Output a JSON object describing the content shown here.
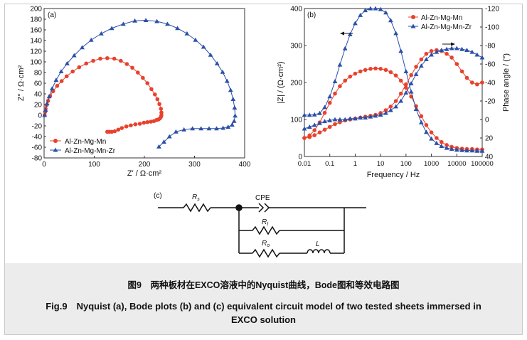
{
  "chart_data": [
    {
      "type": "scatter",
      "panel_label": "(a)",
      "xlabel": "Z' / Ω·cm²",
      "ylabel": "Z'' / Ω·cm²",
      "xlim": [
        0,
        400
      ],
      "ylim": [
        -80,
        200
      ],
      "xticks": [
        0,
        100,
        200,
        300,
        400
      ],
      "yticks": [
        -80,
        -60,
        -40,
        -20,
        0,
        20,
        40,
        60,
        80,
        100,
        120,
        140,
        160,
        180,
        200
      ],
      "legend_position": "bottom-left",
      "series": [
        {
          "name": "Al-Zn-Mg-Mn",
          "color": "#e8412c",
          "marker": "circle",
          "x": [
            1,
            2,
            3,
            5,
            8,
            12,
            18,
            26,
            35,
            45,
            57,
            70,
            84,
            98,
            112,
            126,
            140,
            153,
            165,
            176,
            187,
            197,
            206,
            214,
            221,
            226,
            230,
            233,
            234,
            234,
            233,
            231,
            228,
            224,
            219,
            213,
            206,
            199,
            191,
            182,
            173,
            164,
            155,
            148,
            141,
            135,
            130,
            126
          ],
          "y": [
            0,
            6,
            12,
            19,
            27,
            36,
            45,
            55,
            64,
            73,
            82,
            90,
            97,
            102,
            106,
            107,
            106,
            102,
            96,
            89,
            80,
            70,
            60,
            49,
            39,
            30,
            21,
            12,
            5,
            0,
            -3,
            -6,
            -8,
            -9,
            -11,
            -12,
            -13,
            -14,
            -16,
            -17,
            -19,
            -21,
            -24,
            -27,
            -30,
            -31,
            -31,
            -31
          ]
        },
        {
          "name": "Al-Zn-Mg-Mn-Zr",
          "color": "#2b50a8",
          "marker": "triangle",
          "x": [
            1,
            3,
            6,
            10,
            16,
            24,
            34,
            46,
            60,
            76,
            94,
            114,
            135,
            158,
            181,
            203,
            225,
            246,
            266,
            285,
            302,
            318,
            332,
            345,
            356,
            365,
            372,
            377,
            380,
            381,
            379,
            375,
            367,
            357,
            344,
            329,
            313,
            296,
            279,
            263,
            250,
            239,
            229
          ],
          "y": [
            0,
            10,
            22,
            35,
            50,
            66,
            82,
            97,
            112,
            127,
            141,
            153,
            163,
            171,
            177,
            178,
            176,
            171,
            163,
            153,
            141,
            128,
            113,
            97,
            81,
            64,
            47,
            30,
            14,
            -1,
            -11,
            -18,
            -22,
            -24,
            -25,
            -25,
            -25,
            -25,
            -27,
            -31,
            -40,
            -50,
            -59
          ]
        }
      ]
    },
    {
      "type": "line",
      "panel_label": "(b)",
      "xlabel": "Frequency / Hz",
      "ylabel_left": "|Z| / (Ω·cm²)",
      "ylabel_right": "Phase angle / (°)",
      "x_scale": "log",
      "xlim": [
        0.01,
        100000
      ],
      "xtick_labels": [
        "0.01",
        "0.1",
        "1",
        "10",
        "100",
        "1000",
        "10000",
        "100000"
      ],
      "ylim_left": [
        0,
        400
      ],
      "yticks_left": [
        0,
        100,
        200,
        300,
        400
      ],
      "ylim_right": [
        40,
        -120
      ],
      "yticks_right": [
        40,
        20,
        0,
        -20,
        -40,
        -60,
        -80,
        -100,
        -120
      ],
      "legend_position": "top-right",
      "series": [
        {
          "name": "Al-Zn-Mg-Mn",
          "quantity": "|Z|",
          "axis": "left",
          "color": "#e8412c",
          "marker": "circle",
          "x": [
            100000,
            63000,
            40000,
            25000,
            16000,
            10000,
            6300,
            4000,
            2500,
            1600,
            1000,
            630,
            400,
            250,
            160,
            100,
            63,
            40,
            25,
            16,
            10,
            6.3,
            4,
            2.5,
            1.6,
            1,
            0.63,
            0.4,
            0.25,
            0.16,
            0.1,
            0.063,
            0.04,
            0.025,
            0.016,
            0.01
          ],
          "y": [
            19,
            19,
            20,
            20,
            21,
            23,
            26,
            31,
            39,
            50,
            65,
            85,
            109,
            136,
            162,
            186,
            205,
            219,
            228,
            234,
            237,
            238,
            237,
            234,
            230,
            224,
            216,
            205,
            190,
            170,
            145,
            118,
            92,
            71,
            57,
            50
          ]
        },
        {
          "name": "Al-Zn-Mg-Mn-Zr",
          "quantity": "|Z|",
          "axis": "left",
          "color": "#2b50a8",
          "marker": "triangle",
          "x": [
            100000,
            63000,
            40000,
            25000,
            16000,
            10000,
            6300,
            4000,
            2500,
            1600,
            1000,
            630,
            400,
            250,
            160,
            100,
            63,
            40,
            25,
            16,
            10,
            6.3,
            4,
            2.5,
            1.6,
            1,
            0.63,
            0.4,
            0.25,
            0.16,
            0.1,
            0.063,
            0.04,
            0.025,
            0.016,
            0.01
          ],
          "y": [
            15,
            15,
            16,
            16,
            17,
            18,
            20,
            23,
            28,
            36,
            48,
            66,
            92,
            128,
            175,
            230,
            285,
            333,
            368,
            389,
            398,
            400,
            400,
            395,
            382,
            360,
            330,
            292,
            248,
            203,
            162,
            133,
            117,
            113,
            112,
            112
          ]
        },
        {
          "name": "Al-Zn-Mg-Mn",
          "quantity": "phase angle",
          "axis": "right",
          "color": "#e8412c",
          "marker": "circle",
          "x": [
            100000,
            63000,
            40000,
            25000,
            16000,
            10000,
            6300,
            4000,
            2500,
            1600,
            1000,
            630,
            400,
            250,
            160,
            100,
            63,
            40,
            25,
            16,
            10,
            6.3,
            4,
            2.5,
            1.6,
            1,
            0.63,
            0.4,
            0.25,
            0.16,
            0.1,
            0.063,
            0.04,
            0.025,
            0.016,
            0.01
          ],
          "y": [
            -40,
            -38,
            -40,
            -45,
            -52,
            -60,
            -67,
            -71,
            -74,
            -75,
            -74,
            -71,
            -65,
            -57,
            -48,
            -38,
            -28,
            -20,
            -14,
            -10,
            -7,
            -5,
            -4,
            -3,
            -2,
            -1,
            0,
            1,
            3,
            5,
            8,
            11,
            14,
            17,
            19,
            20
          ]
        },
        {
          "name": "Al-Zn-Mg-Mn-Zr",
          "quantity": "phase angle",
          "axis": "right",
          "color": "#2b50a8",
          "marker": "triangle",
          "x": [
            100000,
            63000,
            40000,
            25000,
            16000,
            10000,
            6300,
            4000,
            2500,
            1600,
            1000,
            630,
            400,
            250,
            160,
            100,
            63,
            40,
            25,
            16,
            10,
            6.3,
            4,
            2.5,
            1.6,
            1,
            0.63,
            0.4,
            0.25,
            0.16,
            0.1,
            0.063,
            0.04,
            0.025,
            0.016,
            0.01
          ],
          "y": [
            -67,
            -70,
            -73,
            -75,
            -76,
            -77,
            -77,
            -76,
            -75,
            -73,
            -70,
            -65,
            -58,
            -49,
            -39,
            -29,
            -20,
            -14,
            -10,
            -7,
            -5,
            -4,
            -3,
            -2,
            -2,
            -1,
            -1,
            0,
            0,
            0,
            1,
            2,
            4,
            6,
            8,
            10
          ]
        }
      ]
    }
  ],
  "circuit": {
    "panel_label": "(c)",
    "components": {
      "rs": "R",
      "rs_sub": "s",
      "cpe": "CPE",
      "rt": "R",
      "rt_sub": "t",
      "ro": "R",
      "ro_sub": "o",
      "l": "L"
    }
  },
  "caption": {
    "cn": "图9　两种板材在EXCO溶液中的Nyquist曲线，Bode图和等效电路图",
    "en_line1": "Fig.9　Nyquist (a), Bode plots (b) and (c) equivalent circuit model of two tested sheets immersed in",
    "en_line2": "EXCO solution"
  }
}
